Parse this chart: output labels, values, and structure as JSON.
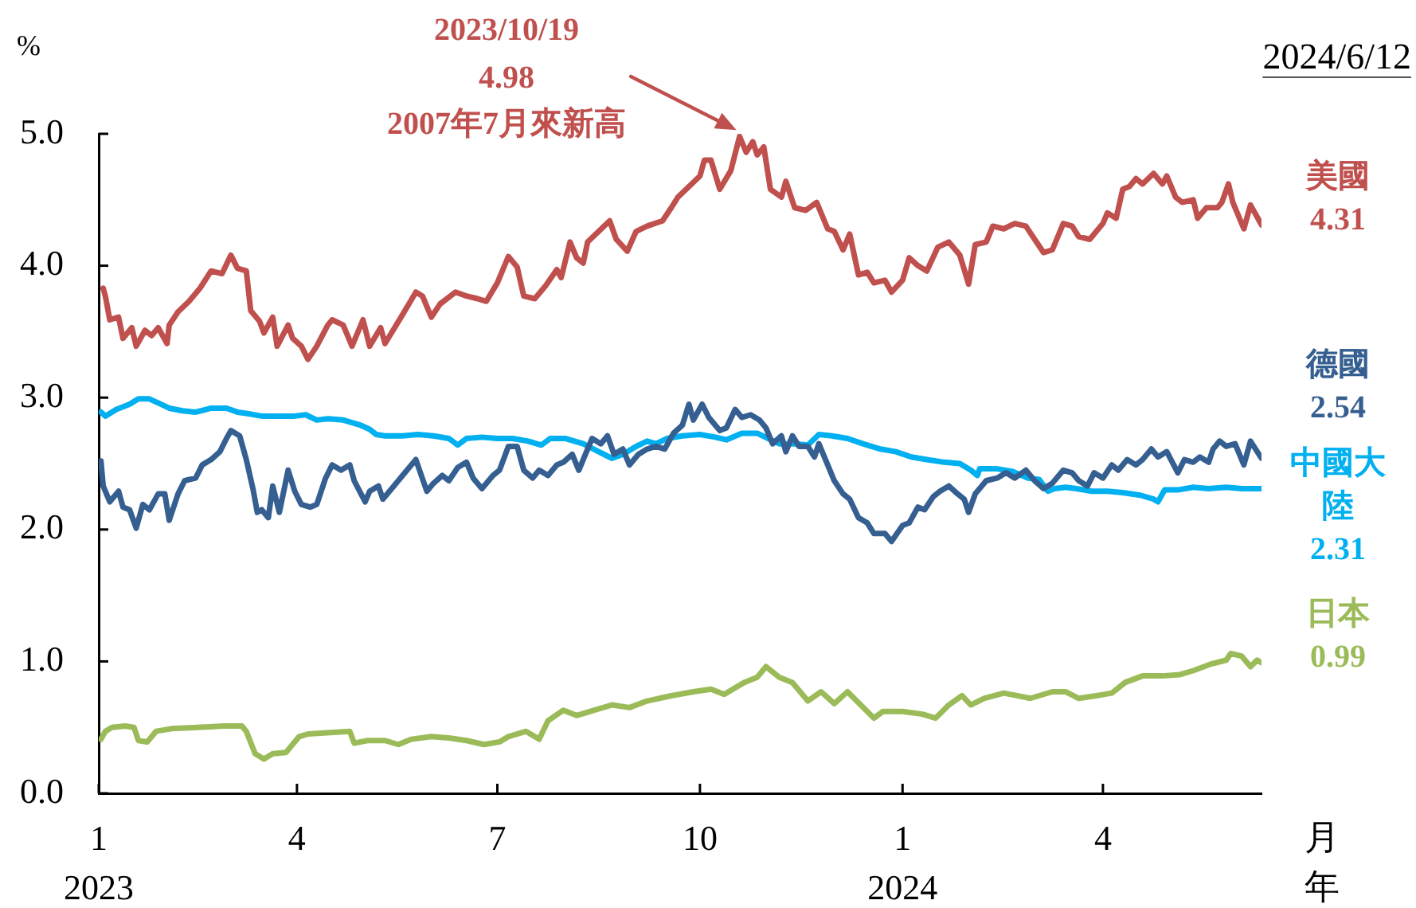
{
  "chart_data": {
    "type": "line",
    "ylabel": "%",
    "xlabel": "月年",
    "xlim": [
      "2023-01-01",
      "2024-06-12"
    ],
    "xticks": [
      {
        "value": "2023-01-01",
        "label": "1\n2023"
      },
      {
        "value": "2023-04-01",
        "label": "4"
      },
      {
        "value": "2023-07-01",
        "label": "7"
      },
      {
        "value": "2023-10-01",
        "label": "10"
      },
      {
        "value": "2024-01-01",
        "label": "1\n2024"
      },
      {
        "value": "2024-04-01",
        "label": "4"
      }
    ],
    "ylim": [
      0,
      5
    ],
    "yticks": [
      {
        "value": 0,
        "label": "0.0"
      },
      {
        "value": 1,
        "label": "1.0"
      },
      {
        "value": 2,
        "label": "2.0"
      },
      {
        "value": 3,
        "label": "3.0"
      },
      {
        "value": 4,
        "label": "4.0"
      },
      {
        "value": 5,
        "label": "5.0"
      }
    ],
    "annotations": [
      "2023/10/19\n4.98\n2007年7月來新高",
      "2024/6/12"
    ],
    "series": [
      {
        "name": "美國",
        "color": "#c0504d",
        "x": [
          "2023-01-03",
          "2023-01-04",
          "2023-01-06",
          "2023-01-10",
          "2023-01-12",
          "2023-01-16",
          "2023-01-18",
          "2023-01-22",
          "2023-01-25",
          "2023-01-28",
          "2023-02-01",
          "2023-02-02",
          "2023-02-06",
          "2023-02-11",
          "2023-02-16",
          "2023-02-21",
          "2023-02-26",
          "2023-03-02",
          "2023-03-05",
          "2023-03-09",
          "2023-03-11",
          "2023-03-15",
          "2023-03-17",
          "2023-03-21",
          "2023-03-23",
          "2023-03-28",
          "2023-03-30",
          "2023-04-03",
          "2023-04-06",
          "2023-04-10",
          "2023-04-15",
          "2023-04-17",
          "2023-04-22",
          "2023-04-26",
          "2023-05-01",
          "2023-05-04",
          "2023-05-09",
          "2023-05-11",
          "2023-05-19",
          "2023-05-25",
          "2023-05-28",
          "2023-06-01",
          "2023-06-05",
          "2023-06-12",
          "2023-06-17",
          "2023-06-22",
          "2023-06-26",
          "2023-07-01",
          "2023-07-06",
          "2023-07-10",
          "2023-07-13",
          "2023-07-18",
          "2023-07-23",
          "2023-07-28",
          "2023-07-30",
          "2023-08-03",
          "2023-08-06",
          "2023-08-09",
          "2023-08-11",
          "2023-08-16",
          "2023-08-21",
          "2023-08-24",
          "2023-08-29",
          "2023-09-02",
          "2023-09-07",
          "2023-09-14",
          "2023-09-18",
          "2023-09-21",
          "2023-09-26",
          "2023-10-01",
          "2023-10-03",
          "2023-10-06",
          "2023-10-10",
          "2023-10-15",
          "2023-10-19",
          "2023-10-22",
          "2023-10-25",
          "2023-10-27",
          "2023-10-30",
          "2023-11-02",
          "2023-11-07",
          "2023-11-09",
          "2023-11-13",
          "2023-11-18",
          "2023-11-23",
          "2023-11-28",
          "2023-12-01",
          "2023-12-05",
          "2023-12-08",
          "2023-12-12",
          "2023-12-16",
          "2023-12-19",
          "2023-12-24",
          "2023-12-27",
          "2024-01-01",
          "2024-01-04",
          "2024-01-08",
          "2024-01-12",
          "2024-01-17",
          "2024-01-22",
          "2024-01-27",
          "2024-01-31",
          "2024-02-03",
          "2024-02-08",
          "2024-02-11",
          "2024-02-16",
          "2024-02-21",
          "2024-02-26",
          "2024-03-01",
          "2024-03-05",
          "2024-03-09",
          "2024-03-14",
          "2024-03-18",
          "2024-03-21",
          "2024-03-26",
          "2024-04-01",
          "2024-04-03",
          "2024-04-07",
          "2024-04-10",
          "2024-04-13",
          "2024-04-16",
          "2024-04-19",
          "2024-04-24",
          "2024-04-28",
          "2024-04-30",
          "2024-05-04",
          "2024-05-07",
          "2024-05-12",
          "2024-05-14",
          "2024-05-18",
          "2024-05-23",
          "2024-05-25",
          "2024-05-28",
          "2024-05-30",
          "2024-06-04",
          "2024-06-07",
          "2024-06-12"
        ],
        "values": [
          3.83,
          3.77,
          3.59,
          3.61,
          3.45,
          3.53,
          3.39,
          3.51,
          3.47,
          3.53,
          3.41,
          3.55,
          3.65,
          3.73,
          3.83,
          3.96,
          3.94,
          4.08,
          3.98,
          3.96,
          3.66,
          3.58,
          3.49,
          3.61,
          3.39,
          3.55,
          3.45,
          3.39,
          3.29,
          3.39,
          3.55,
          3.59,
          3.55,
          3.39,
          3.59,
          3.39,
          3.53,
          3.41,
          3.63,
          3.8,
          3.77,
          3.61,
          3.71,
          3.8,
          3.77,
          3.75,
          3.73,
          3.87,
          4.07,
          3.99,
          3.77,
          3.75,
          3.85,
          3.97,
          3.91,
          4.18,
          4.06,
          4.02,
          4.18,
          4.26,
          4.34,
          4.2,
          4.11,
          4.26,
          4.3,
          4.34,
          4.44,
          4.52,
          4.6,
          4.68,
          4.8,
          4.8,
          4.58,
          4.72,
          4.98,
          4.86,
          4.94,
          4.84,
          4.9,
          4.58,
          4.52,
          4.64,
          4.44,
          4.42,
          4.48,
          4.28,
          4.26,
          4.12,
          4.24,
          3.93,
          3.95,
          3.87,
          3.89,
          3.8,
          3.89,
          4.06,
          4.0,
          3.96,
          4.14,
          4.18,
          4.08,
          3.86,
          4.16,
          4.18,
          4.3,
          4.28,
          4.32,
          4.3,
          4.2,
          4.1,
          4.12,
          4.32,
          4.3,
          4.22,
          4.2,
          4.32,
          4.4,
          4.36,
          4.58,
          4.6,
          4.66,
          4.62,
          4.7,
          4.62,
          4.68,
          4.52,
          4.48,
          4.5,
          4.36,
          4.44,
          4.44,
          4.48,
          4.62,
          4.48,
          4.28,
          4.46,
          4.31
        ],
        "value_labels": [
          null,
          null,
          null,
          null,
          null,
          null,
          null,
          null,
          null,
          null,
          null,
          null,
          null,
          null,
          null,
          null,
          null,
          null,
          null,
          null,
          null,
          null,
          null,
          null,
          null,
          null,
          null,
          null,
          null,
          null,
          null,
          null,
          null,
          null,
          null,
          null,
          null,
          null,
          null,
          null,
          null,
          null,
          null,
          null,
          null,
          null,
          null,
          null,
          null,
          null,
          null,
          null,
          null,
          null,
          null,
          null,
          null,
          null,
          null,
          null,
          null,
          null,
          null,
          null,
          null,
          null,
          null,
          null,
          null,
          null,
          null,
          null,
          null,
          null,
          null,
          null,
          null,
          null,
          null,
          null,
          null,
          null,
          null,
          null,
          null,
          null,
          null,
          null,
          null,
          null,
          null,
          null,
          null,
          null,
          null,
          null,
          null,
          null,
          null,
          null,
          null,
          null,
          null,
          null,
          null,
          null,
          null,
          null,
          null,
          null,
          null,
          null,
          null,
          null,
          null,
          null,
          null,
          null,
          null,
          null,
          null,
          null,
          null,
          null,
          null,
          null,
          null,
          null,
          null,
          null,
          null,
          null,
          null,
          null,
          null,
          null,
          "4.31"
        ]
      },
      {
        "name": "德國",
        "color": "#365f91",
        "x": [
          "2023-01-02",
          "2023-01-03",
          "2023-01-05",
          "2023-01-06",
          "2023-01-10",
          "2023-01-12",
          "2023-01-15",
          "2023-01-18",
          "2023-01-21",
          "2023-01-24",
          "2023-01-28",
          "2023-01-31",
          "2023-02-02",
          "2023-02-06",
          "2023-02-09",
          "2023-02-14",
          "2023-02-17",
          "2023-02-21",
          "2023-02-25",
          "2023-02-28",
          "2023-03-02",
          "2023-03-06",
          "2023-03-09",
          "2023-03-12",
          "2023-03-14",
          "2023-03-16",
          "2023-03-19",
          "2023-03-21",
          "2023-03-24",
          "2023-03-28",
          "2023-03-31",
          "2023-04-03",
          "2023-04-07",
          "2023-04-10",
          "2023-04-14",
          "2023-04-17",
          "2023-04-21",
          "2023-04-25",
          "2023-04-27",
          "2023-05-02",
          "2023-05-04",
          "2023-05-08",
          "2023-05-10",
          "2023-05-15",
          "2023-05-20",
          "2023-05-25",
          "2023-05-30",
          "2023-06-02",
          "2023-06-06",
          "2023-06-09",
          "2023-06-13",
          "2023-06-17",
          "2023-06-20",
          "2023-06-24",
          "2023-06-29",
          "2023-07-02",
          "2023-07-06",
          "2023-07-10",
          "2023-07-13",
          "2023-07-17",
          "2023-07-20",
          "2023-07-24",
          "2023-07-28",
          "2023-07-31",
          "2023-08-04",
          "2023-08-07",
          "2023-08-10",
          "2023-08-13",
          "2023-08-17",
          "2023-08-20",
          "2023-08-23",
          "2023-08-27",
          "2023-08-30",
          "2023-09-03",
          "2023-09-07",
          "2023-09-11",
          "2023-09-15",
          "2023-09-19",
          "2023-09-23",
          "2023-09-26",
          "2023-09-28",
          "2023-10-02",
          "2023-10-05",
          "2023-10-10",
          "2023-10-13",
          "2023-10-17",
          "2023-10-20",
          "2023-10-24",
          "2023-10-28",
          "2023-10-31",
          "2023-11-03",
          "2023-11-07",
          "2023-11-09",
          "2023-11-12",
          "2023-11-15",
          "2023-11-19",
          "2023-11-22",
          "2023-11-24",
          "2023-11-28",
          "2023-12-01",
          "2023-12-05",
          "2023-12-08",
          "2023-12-12",
          "2023-12-16",
          "2023-12-19",
          "2023-12-24",
          "2023-12-27",
          "2024-01-01",
          "2024-01-04",
          "2024-01-08",
          "2024-01-11",
          "2024-01-15",
          "2024-01-18",
          "2024-01-22",
          "2024-01-26",
          "2024-01-29",
          "2024-01-31",
          "2024-02-03",
          "2024-02-08",
          "2024-02-13",
          "2024-02-17",
          "2024-02-21",
          "2024-02-26",
          "2024-03-01",
          "2024-03-05",
          "2024-03-09",
          "2024-03-14",
          "2024-03-18",
          "2024-03-21",
          "2024-03-25",
          "2024-03-28",
          "2024-04-01",
          "2024-04-05",
          "2024-04-08",
          "2024-04-12",
          "2024-04-16",
          "2024-04-19",
          "2024-04-23",
          "2024-04-26",
          "2024-04-30",
          "2024-05-05",
          "2024-05-08",
          "2024-05-12",
          "2024-05-15",
          "2024-05-19",
          "2024-05-21",
          "2024-05-24",
          "2024-05-27",
          "2024-05-31",
          "2024-06-04",
          "2024-06-07",
          "2024-06-12"
        ],
        "values": [
          2.52,
          2.33,
          2.25,
          2.21,
          2.29,
          2.17,
          2.15,
          2.01,
          2.19,
          2.15,
          2.27,
          2.27,
          2.07,
          2.27,
          2.37,
          2.39,
          2.49,
          2.53,
          2.59,
          2.69,
          2.75,
          2.71,
          2.53,
          2.31,
          2.13,
          2.15,
          2.09,
          2.33,
          2.13,
          2.45,
          2.29,
          2.19,
          2.17,
          2.19,
          2.39,
          2.49,
          2.45,
          2.49,
          2.37,
          2.21,
          2.29,
          2.33,
          2.23,
          2.33,
          2.43,
          2.53,
          2.29,
          2.35,
          2.41,
          2.37,
          2.47,
          2.51,
          2.39,
          2.31,
          2.41,
          2.45,
          2.63,
          2.63,
          2.45,
          2.39,
          2.45,
          2.41,
          2.49,
          2.51,
          2.57,
          2.45,
          2.57,
          2.69,
          2.65,
          2.71,
          2.57,
          2.61,
          2.49,
          2.57,
          2.61,
          2.63,
          2.61,
          2.73,
          2.79,
          2.95,
          2.83,
          2.95,
          2.85,
          2.75,
          2.77,
          2.91,
          2.85,
          2.87,
          2.83,
          2.77,
          2.65,
          2.71,
          2.59,
          2.71,
          2.63,
          2.63,
          2.55,
          2.65,
          2.49,
          2.37,
          2.27,
          2.23,
          2.09,
          2.05,
          1.97,
          1.97,
          1.91,
          2.03,
          2.05,
          2.17,
          2.15,
          2.25,
          2.29,
          2.33,
          2.27,
          2.23,
          2.13,
          2.27,
          2.37,
          2.39,
          2.43,
          2.39,
          2.45,
          2.37,
          2.31,
          2.35,
          2.45,
          2.43,
          2.37,
          2.33,
          2.43,
          2.39,
          2.49,
          2.45,
          2.53,
          2.49,
          2.53,
          2.61,
          2.55,
          2.59,
          2.43,
          2.53,
          2.51,
          2.55,
          2.51,
          2.61,
          2.67,
          2.63,
          2.65,
          2.49,
          2.67,
          2.54
        ],
        "value_labels": [
          null,
          null,
          null,
          null,
          null,
          null,
          null,
          null,
          null,
          null,
          null,
          null,
          null,
          null,
          null,
          null,
          null,
          null,
          null,
          null,
          null,
          null,
          null,
          null,
          null,
          null,
          null,
          null,
          null,
          null,
          null,
          null,
          null,
          null,
          null,
          null,
          null,
          null,
          null,
          null,
          null,
          null,
          null,
          null,
          null,
          null,
          null,
          null,
          null,
          null,
          null,
          null,
          null,
          null,
          null,
          null,
          null,
          null,
          null,
          null,
          null,
          null,
          null,
          null,
          null,
          null,
          null,
          null,
          null,
          null,
          null,
          null,
          null,
          null,
          null,
          null,
          null,
          null,
          null,
          null,
          null,
          null,
          null,
          null,
          null,
          null,
          null,
          null,
          null,
          null,
          null,
          null,
          null,
          null,
          null,
          null,
          null,
          null,
          null,
          null,
          null,
          null,
          null,
          null,
          null,
          null,
          null,
          null,
          null,
          null,
          null,
          null,
          null,
          null,
          null,
          null,
          null,
          null,
          null,
          null,
          null,
          null,
          null,
          null,
          null,
          null,
          null,
          null,
          null,
          null,
          null,
          null,
          null,
          null,
          null,
          null,
          null,
          null,
          null,
          null,
          null,
          null,
          null,
          null,
          null,
          null,
          null,
          null,
          null,
          null,
          null,
          "2.54"
        ]
      },
      {
        "name": "中國大陸",
        "color": "#00b0f0",
        "x": [
          "2023-01-02",
          "2023-01-04",
          "2023-01-09",
          "2023-01-15",
          "2023-01-19",
          "2023-01-24",
          "2023-01-28",
          "2023-02-02",
          "2023-02-08",
          "2023-02-14",
          "2023-02-21",
          "2023-02-28",
          "2023-03-05",
          "2023-03-09",
          "2023-03-16",
          "2023-03-24",
          "2023-03-31",
          "2023-04-05",
          "2023-04-10",
          "2023-04-15",
          "2023-04-22",
          "2023-04-30",
          "2023-05-04",
          "2023-05-07",
          "2023-05-11",
          "2023-05-19",
          "2023-05-26",
          "2023-06-02",
          "2023-06-09",
          "2023-06-13",
          "2023-06-17",
          "2023-06-24",
          "2023-07-01",
          "2023-07-08",
          "2023-07-15",
          "2023-07-21",
          "2023-07-25",
          "2023-08-01",
          "2023-08-09",
          "2023-08-16",
          "2023-08-22",
          "2023-08-27",
          "2023-09-02",
          "2023-09-07",
          "2023-09-11",
          "2023-09-16",
          "2023-09-23",
          "2023-10-01",
          "2023-10-08",
          "2023-10-13",
          "2023-10-20",
          "2023-10-27",
          "2023-11-01",
          "2023-11-06",
          "2023-11-13",
          "2023-11-19",
          "2023-11-24",
          "2023-11-30",
          "2023-12-07",
          "2023-12-14",
          "2023-12-22",
          "2023-12-29",
          "2024-01-05",
          "2024-01-12",
          "2024-01-20",
          "2024-01-27",
          "2024-02-01",
          "2024-02-04",
          "2024-02-05",
          "2024-02-13",
          "2024-02-20",
          "2024-02-27",
          "2024-03-03",
          "2024-03-07",
          "2024-03-10",
          "2024-03-15",
          "2024-03-20",
          "2024-03-27",
          "2024-04-03",
          "2024-04-10",
          "2024-04-18",
          "2024-04-24",
          "2024-04-26",
          "2024-04-29",
          "2024-05-05",
          "2024-05-12",
          "2024-05-19",
          "2024-05-27",
          "2024-06-03",
          "2024-06-12"
        ],
        "values": [
          2.89,
          2.86,
          2.91,
          2.95,
          2.99,
          2.99,
          2.96,
          2.92,
          2.9,
          2.89,
          2.92,
          2.92,
          2.89,
          2.88,
          2.86,
          2.86,
          2.86,
          2.87,
          2.83,
          2.84,
          2.83,
          2.79,
          2.76,
          2.72,
          2.71,
          2.71,
          2.72,
          2.71,
          2.69,
          2.64,
          2.69,
          2.7,
          2.69,
          2.69,
          2.67,
          2.64,
          2.69,
          2.69,
          2.65,
          2.59,
          2.54,
          2.57,
          2.63,
          2.67,
          2.65,
          2.69,
          2.71,
          2.72,
          2.7,
          2.68,
          2.73,
          2.73,
          2.69,
          2.65,
          2.65,
          2.64,
          2.72,
          2.71,
          2.69,
          2.65,
          2.61,
          2.59,
          2.55,
          2.53,
          2.51,
          2.5,
          2.45,
          2.41,
          2.46,
          2.46,
          2.44,
          2.39,
          2.38,
          2.29,
          2.31,
          2.32,
          2.31,
          2.29,
          2.29,
          2.28,
          2.26,
          2.23,
          2.21,
          2.3,
          2.3,
          2.32,
          2.31,
          2.32,
          2.31,
          2.31
        ],
        "value_labels": [
          null,
          null,
          null,
          null,
          null,
          null,
          null,
          null,
          null,
          null,
          null,
          null,
          null,
          null,
          null,
          null,
          null,
          null,
          null,
          null,
          null,
          null,
          null,
          null,
          null,
          null,
          null,
          null,
          null,
          null,
          null,
          null,
          null,
          null,
          null,
          null,
          null,
          null,
          null,
          null,
          null,
          null,
          null,
          null,
          null,
          null,
          null,
          null,
          null,
          null,
          null,
          null,
          null,
          null,
          null,
          null,
          null,
          null,
          null,
          null,
          null,
          null,
          null,
          null,
          null,
          null,
          null,
          null,
          null,
          null,
          null,
          null,
          null,
          null,
          null,
          null,
          null,
          null,
          null,
          null,
          null,
          null,
          null,
          null,
          null,
          null,
          null,
          null,
          null,
          "2.31"
        ]
      },
      {
        "name": "日本",
        "color": "#9bbb59",
        "x": [
          "2023-01-02",
          "2023-01-04",
          "2023-01-07",
          "2023-01-13",
          "2023-01-17",
          "2023-01-19",
          "2023-01-23",
          "2023-01-27",
          "2023-02-03",
          "2023-02-15",
          "2023-02-27",
          "2023-03-07",
          "2023-03-09",
          "2023-03-13",
          "2023-03-17",
          "2023-03-21",
          "2023-03-27",
          "2023-04-02",
          "2023-04-06",
          "2023-04-16",
          "2023-04-25",
          "2023-04-27",
          "2023-05-03",
          "2023-05-11",
          "2023-05-17",
          "2023-05-23",
          "2023-06-01",
          "2023-06-09",
          "2023-06-17",
          "2023-06-25",
          "2023-07-02",
          "2023-07-06",
          "2023-07-14",
          "2023-07-20",
          "2023-07-24",
          "2023-07-31",
          "2023-08-06",
          "2023-08-14",
          "2023-08-22",
          "2023-08-30",
          "2023-09-07",
          "2023-09-18",
          "2023-09-28",
          "2023-10-06",
          "2023-10-12",
          "2023-10-21",
          "2023-10-27",
          "2023-10-31",
          "2023-11-06",
          "2023-11-12",
          "2023-11-19",
          "2023-11-25",
          "2023-12-01",
          "2023-12-07",
          "2023-12-13",
          "2023-12-19",
          "2023-12-23",
          "2024-01-01",
          "2024-01-10",
          "2024-01-16",
          "2024-01-22",
          "2024-01-28",
          "2024-02-01",
          "2024-02-07",
          "2024-02-16",
          "2024-02-28",
          "2024-03-09",
          "2024-03-15",
          "2024-03-21",
          "2024-03-29",
          "2024-04-05",
          "2024-04-11",
          "2024-04-19",
          "2024-04-28",
          "2024-05-06",
          "2024-05-12",
          "2024-05-20",
          "2024-05-27",
          "2024-05-29",
          "2024-06-03",
          "2024-06-07",
          "2024-06-10",
          "2024-06-12"
        ],
        "values": [
          0.41,
          0.47,
          0.5,
          0.51,
          0.5,
          0.4,
          0.39,
          0.47,
          0.49,
          0.5,
          0.51,
          0.51,
          0.47,
          0.3,
          0.26,
          0.3,
          0.31,
          0.43,
          0.45,
          0.46,
          0.47,
          0.38,
          0.4,
          0.4,
          0.37,
          0.41,
          0.43,
          0.42,
          0.4,
          0.37,
          0.39,
          0.43,
          0.47,
          0.41,
          0.55,
          0.63,
          0.59,
          0.63,
          0.67,
          0.65,
          0.7,
          0.74,
          0.77,
          0.79,
          0.75,
          0.84,
          0.88,
          0.96,
          0.88,
          0.84,
          0.7,
          0.77,
          0.68,
          0.77,
          0.67,
          0.57,
          0.62,
          0.62,
          0.6,
          0.57,
          0.67,
          0.74,
          0.67,
          0.72,
          0.76,
          0.72,
          0.77,
          0.77,
          0.72,
          0.74,
          0.76,
          0.84,
          0.89,
          0.89,
          0.9,
          0.93,
          0.98,
          1.01,
          1.06,
          1.04,
          0.96,
          1.01,
          0.99
        ],
        "value_labels": [
          null,
          null,
          null,
          null,
          null,
          null,
          null,
          null,
          null,
          null,
          null,
          null,
          null,
          null,
          null,
          null,
          null,
          null,
          null,
          null,
          null,
          null,
          null,
          null,
          null,
          null,
          null,
          null,
          null,
          null,
          null,
          null,
          null,
          null,
          null,
          null,
          null,
          null,
          null,
          null,
          null,
          null,
          null,
          null,
          null,
          null,
          null,
          null,
          null,
          null,
          null,
          null,
          null,
          null,
          null,
          null,
          null,
          null,
          null,
          null,
          null,
          null,
          null,
          null,
          null,
          null,
          null,
          null,
          null,
          null,
          null,
          null,
          null,
          null,
          null,
          null,
          null,
          null,
          null,
          null,
          null,
          null,
          "0.99"
        ]
      }
    ]
  }
}
